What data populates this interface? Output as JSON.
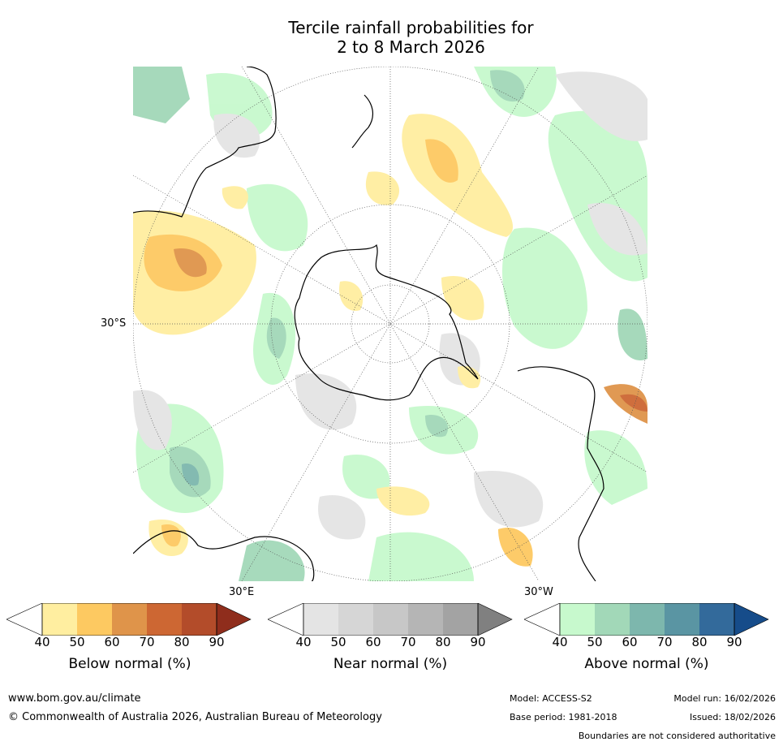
{
  "title_line1": "Tercile rainfall probabilities for",
  "title_line2": "2 to 8 March 2026",
  "map_labels": {
    "lat_30S": "30°S",
    "lon_30E": "30°E",
    "lon_30W": "30°W"
  },
  "colorbars": [
    {
      "label": "Below normal (%)",
      "ticks": [
        "40",
        "50",
        "60",
        "70",
        "80",
        "90"
      ],
      "colors": [
        "#ffffff",
        "#ffeea0",
        "#fdc961",
        "#df944a",
        "#cd6733",
        "#b34c2a",
        "#8f2d1c"
      ]
    },
    {
      "label": "Near normal (%)",
      "ticks": [
        "40",
        "50",
        "60",
        "70",
        "80",
        "90"
      ],
      "colors": [
        "#ffffff",
        "#e4e4e4",
        "#d6d6d6",
        "#c7c7c7",
        "#b5b5b5",
        "#a3a3a3",
        "#808080"
      ]
    },
    {
      "label": "Above normal (%)",
      "ticks": [
        "40",
        "50",
        "60",
        "70",
        "80",
        "90"
      ],
      "colors": [
        "#ffffff",
        "#c7f9cd",
        "#a2d8b8",
        "#7db7ad",
        "#5a95a3",
        "#336a9b",
        "#164c8a"
      ]
    }
  ],
  "footer": {
    "url": "www.bom.gov.au/climate",
    "copyright": "© Commonwealth of Australia 2026, Australian Bureau of Meteorology",
    "model": "Model: ACCESS-S2",
    "base_period": "Base period: 1981-2018",
    "model_run": "Model run: 16/02/2026",
    "issued": "Issued: 18/02/2026",
    "disclaimer": "Boundaries are not considered authoritative"
  }
}
